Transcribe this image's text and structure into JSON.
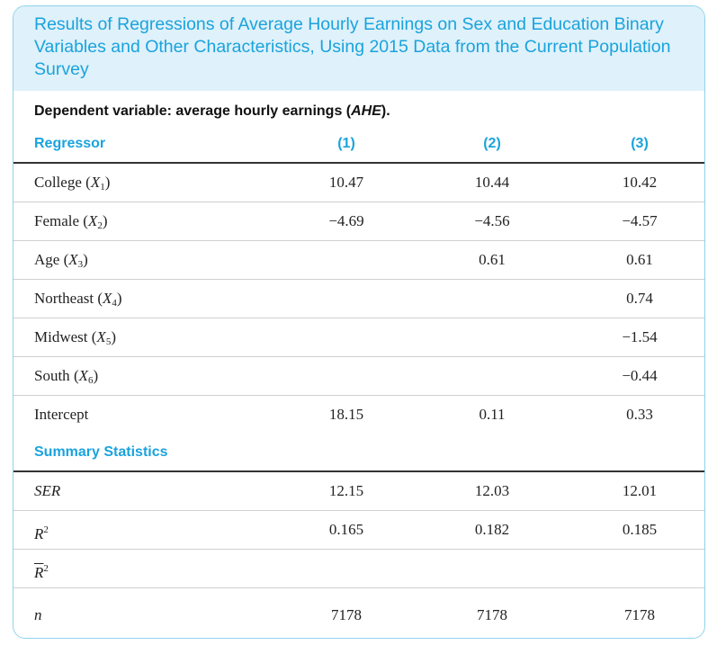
{
  "title": "Results of Regressions of Average Hourly Earnings on Sex and Education Binary Variables and Other Characteristics, Using 2015 Data from the Current Population Survey",
  "dependent_variable": {
    "prefix": "Dependent variable: average hourly earnings (",
    "abbr": "AHE",
    "suffix": ")."
  },
  "header": {
    "regressor": "Regressor",
    "col1": "(1)",
    "col2": "(2)",
    "col3": "(3)"
  },
  "regressors": [
    {
      "name": "College",
      "symbol": "X",
      "sub": "1",
      "c1": "10.47",
      "c2": "10.44",
      "c3": "10.42"
    },
    {
      "name": "Female",
      "symbol": "X",
      "sub": "2",
      "c1": "−4.69",
      "c2": "−4.56",
      "c3": "−4.57"
    },
    {
      "name": "Age",
      "symbol": "X",
      "sub": "3",
      "c1": "",
      "c2": "0.61",
      "c3": "0.61"
    },
    {
      "name": "Northeast",
      "symbol": "X",
      "sub": "4",
      "c1": "",
      "c2": "",
      "c3": "0.74"
    },
    {
      "name": "Midwest",
      "symbol": "X",
      "sub": "5",
      "c1": "",
      "c2": "",
      "c3": "−1.54"
    },
    {
      "name": "South",
      "symbol": "X",
      "sub": "6",
      "c1": "",
      "c2": "",
      "c3": "−0.44"
    },
    {
      "name": "Intercept",
      "c1": "18.15",
      "c2": "0.11",
      "c3": "0.33"
    }
  ],
  "summary_header": "Summary Statistics",
  "summary": [
    {
      "label": "SER",
      "c1": "12.15",
      "c2": "12.03",
      "c3": "12.01"
    },
    {
      "label": "R",
      "sup": "2",
      "c1": "0.165",
      "c2": "0.182",
      "c3": "0.185"
    },
    {
      "label": "R",
      "sup": "2",
      "bar": true,
      "c1": "",
      "c2": "",
      "c3": ""
    },
    {
      "label": "n",
      "c1": "7178",
      "c2": "7178",
      "c3": "7178"
    }
  ],
  "colors": {
    "accent": "#1aa3dd",
    "title_bg": "#dff1fa",
    "border": "#8fd3ee"
  }
}
